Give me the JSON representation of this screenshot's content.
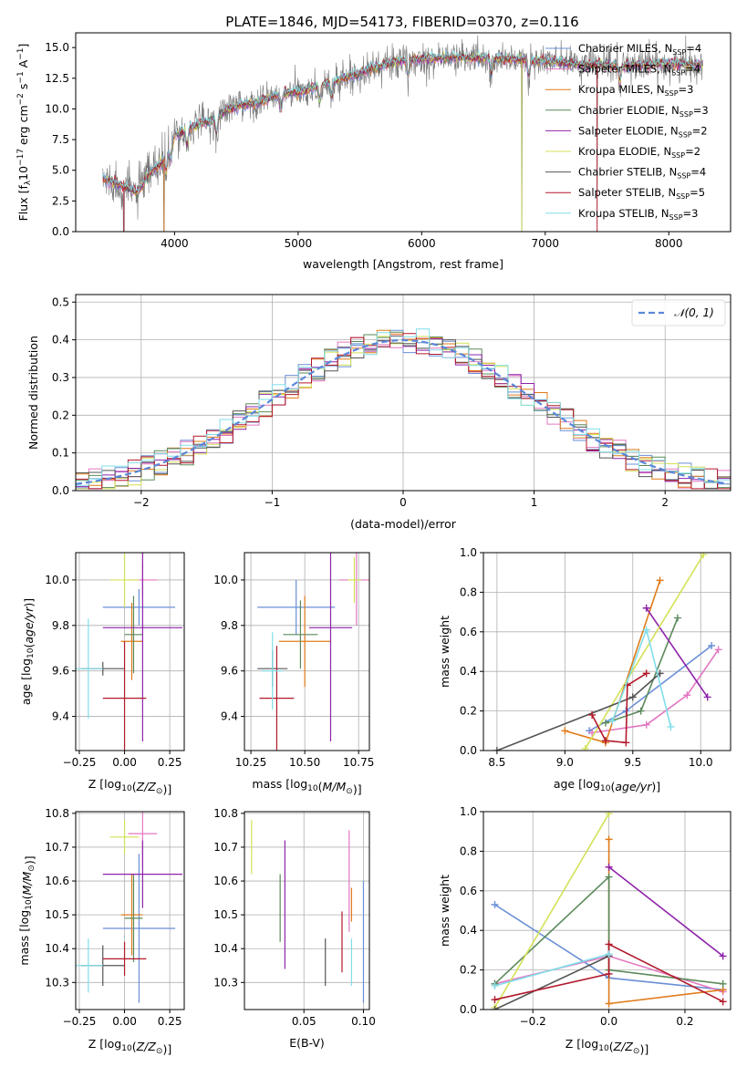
{
  "figure_title": "PLATE=1846, MJD=54173, FIBERID=0370, z=0.116",
  "series": [
    {
      "name": "Chabrier MILES, N$_{SSP}$=4",
      "label_base": "Chabrier MILES, N",
      "label_sub": "SSP",
      "label_tail": "=4",
      "color": "#6b8fd6"
    },
    {
      "name": "Salpeter MILES, N$_{SSP}$=4",
      "label_base": "Salpeter MILES, N",
      "label_sub": "SSP",
      "label_tail": "=4",
      "color": "#e377c2"
    },
    {
      "name": "Kroupa MILES, N$_{SSP}$=3",
      "label_base": "Kroupa MILES, N",
      "label_sub": "SSP",
      "label_tail": "=3",
      "color": "#e07b1a"
    },
    {
      "name": "Chabrier ELODIE, N$_{SSP}$=3",
      "label_base": "Chabrier ELODIE, N",
      "label_sub": "SSP",
      "label_tail": "=3",
      "color": "#5b8a5b"
    },
    {
      "name": "Salpeter ELODIE, N$_{SSP}$=2",
      "label_base": "Salpeter ELODIE, N",
      "label_sub": "SSP",
      "label_tail": "=2",
      "color": "#8e24aa"
    },
    {
      "name": "Kroupa ELODIE, N$_{SSP}$=2",
      "label_base": "Kroupa ELODIE, N",
      "label_sub": "SSP",
      "label_tail": "=2",
      "color": "#d4e157"
    },
    {
      "name": "Chabrier STELIB, N$_{SSP}$=4",
      "label_base": "Chabrier STELIB, N",
      "label_sub": "SSP",
      "label_tail": "=4",
      "color": "#555555"
    },
    {
      "name": "Salpeter STELIB, N$_{SSP}$=5",
      "label_base": "Salpeter STELIB, N",
      "label_sub": "SSP",
      "label_tail": "=5",
      "color": "#b2182b"
    },
    {
      "name": "Kroupa STELIB, N$_{SSP}$=3",
      "label_base": "Kroupa STELIB, N",
      "label_sub": "SSP",
      "label_tail": "=3",
      "color": "#80deea"
    }
  ],
  "chart_data": [
    {
      "id": "spectrum",
      "type": "line",
      "xlabel": "wavelength [Angstrom, rest frame]",
      "ylabel_base": "Flux [f",
      "ylabel_rest": "10",
      "ylabel_exp": "−17",
      "ylabel_tail": " erg cm",
      "ylabel_exp2": "−2",
      "ylabel_tail2": " s",
      "ylabel_exp3": "−1",
      "ylabel_tail3": " A",
      "ylabel_exp4": "−1",
      "ylabel_end": "]",
      "xlim": [
        3200,
        8500
      ],
      "ylim": [
        0,
        16.2
      ],
      "xticks": [
        4000,
        5000,
        6000,
        7000,
        8000
      ],
      "yticks": [
        0.0,
        2.5,
        5.0,
        7.5,
        10.0,
        12.5,
        15.0
      ],
      "ytick_labels": [
        "0.0",
        "2.5",
        "5.0",
        "7.5",
        "10.0",
        "12.5",
        "15.0"
      ],
      "data_range": [
        3420,
        8280
      ],
      "anchors": [
        [
          3420,
          4.3
        ],
        [
          3600,
          3.6
        ],
        [
          3700,
          3.2
        ],
        [
          3800,
          4.8
        ],
        [
          3900,
          5.6
        ],
        [
          4000,
          7.8
        ],
        [
          4100,
          8.3
        ],
        [
          4200,
          8.8
        ],
        [
          4300,
          9.0
        ],
        [
          4400,
          9.8
        ],
        [
          4500,
          10.2
        ],
        [
          4700,
          10.6
        ],
        [
          4860,
          11.2
        ],
        [
          5000,
          11.3
        ],
        [
          5200,
          12.0
        ],
        [
          5400,
          12.6
        ],
        [
          5600,
          13.3
        ],
        [
          5800,
          13.9
        ],
        [
          6000,
          14.1
        ],
        [
          6300,
          14.2
        ],
        [
          6600,
          14.1
        ],
        [
          6800,
          14.0
        ],
        [
          7000,
          13.9
        ],
        [
          7300,
          13.6
        ],
        [
          7600,
          13.5
        ],
        [
          8000,
          13.7
        ],
        [
          8280,
          13.6
        ]
      ],
      "dips": [
        3933,
        3968,
        4102,
        4340,
        4861,
        5175,
        5270,
        5890,
        6563,
        6867,
        7605
      ],
      "spikes_to_zero": [
        3590,
        3915,
        6810,
        7420
      ],
      "legend_location": "top-right",
      "grid": false
    },
    {
      "id": "residuals",
      "type": "step-histogram",
      "xlabel": "(data-model)/error",
      "ylabel": "Normed distribution",
      "xlim": [
        -2.5,
        2.5
      ],
      "ylim": [
        0,
        0.52
      ],
      "xticks": [
        -2,
        -1,
        0,
        1,
        2
      ],
      "xtick_labels": [
        "−2",
        "−1",
        "0",
        "1",
        "2"
      ],
      "yticks": [
        0.0,
        0.1,
        0.2,
        0.3,
        0.4,
        0.5
      ],
      "ytick_labels": [
        "0.0",
        "0.1",
        "0.2",
        "0.3",
        "0.4",
        "0.5"
      ],
      "bin_width": 0.1,
      "reference_curve": {
        "name": "N(0,1)",
        "label": "𝒩(0, 1)",
        "color": "#5b87d9",
        "style": "dashed"
      },
      "legend_location": "top-right",
      "grid": true
    },
    {
      "id": "age_vs_Z",
      "type": "errorbar",
      "xlabel": "Z [log10(Z/Z⊙)]",
      "ylabel": "age  [log10(age/yr)]",
      "xlim": [
        -0.27,
        0.33
      ],
      "ylim": [
        9.25,
        10.12
      ],
      "xticks": [
        -0.25,
        0.0,
        0.25
      ],
      "xtick_labels": [
        "−0.25",
        "0.00",
        "0.25"
      ],
      "yticks": [
        9.4,
        9.6,
        9.8,
        10.0
      ],
      "ytick_labels": [
        "9.4",
        "9.6",
        "9.8",
        "10.0"
      ],
      "points": [
        {
          "s": 0,
          "x": 0.08,
          "xe": 0.2,
          "y": 9.88,
          "ye": 0.08
        },
        {
          "s": 1,
          "x": 0.1,
          "xe": 0.08,
          "y": 10.0,
          "ye": 0.08
        },
        {
          "s": 2,
          "x": 0.04,
          "xe": 0.06,
          "y": 9.73,
          "ye": 0.17
        },
        {
          "s": 3,
          "x": 0.05,
          "xe": 0.05,
          "y": 9.76,
          "ye": 0.17
        },
        {
          "s": 4,
          "x": 0.1,
          "xe": 0.22,
          "y": 9.79,
          "ye": 0.5
        },
        {
          "s": 5,
          "x": 0.0,
          "xe": 0.08,
          "y": 10.0,
          "ye": 0.12
        },
        {
          "s": 6,
          "x": -0.12,
          "xe": 0.12,
          "y": 9.61,
          "ye": 0.03
        },
        {
          "s": 7,
          "x": 0.0,
          "xe": 0.12,
          "y": 9.48,
          "ye": 0.25
        },
        {
          "s": 8,
          "x": -0.2,
          "xe": 0.08,
          "y": 9.61,
          "ye": 0.22
        }
      ]
    },
    {
      "id": "age_vs_mass",
      "type": "errorbar",
      "xlabel": "mass [log10(M/M⊙)]",
      "ylabel": "",
      "xlim": [
        10.22,
        10.8
      ],
      "ylim": [
        9.25,
        10.12
      ],
      "xticks": [
        10.25,
        10.5,
        10.75
      ],
      "xtick_labels": [
        "10.25",
        "10.50",
        "10.75"
      ],
      "yticks": [
        9.4,
        9.6,
        9.8,
        10.0
      ],
      "ytick_labels": [
        "9.4",
        "9.6",
        "9.8",
        "10.0"
      ],
      "points": [
        {
          "s": 0,
          "x": 10.46,
          "xe": 0.18,
          "y": 9.88,
          "ye": 0.12
        },
        {
          "s": 1,
          "x": 10.74,
          "xe": 0.08,
          "y": 10.0,
          "ye": 0.2
        },
        {
          "s": 2,
          "x": 10.5,
          "xe": 0.12,
          "y": 9.73,
          "ye": 0.2
        },
        {
          "s": 3,
          "x": 10.48,
          "xe": 0.08,
          "y": 9.76,
          "ye": 0.15
        },
        {
          "s": 4,
          "x": 10.62,
          "xe": 0.1,
          "y": 9.79,
          "ye": 0.5
        },
        {
          "s": 5,
          "x": 10.73,
          "xe": 0.03,
          "y": 10.0,
          "ye": 0.1
        },
        {
          "s": 6,
          "x": 10.35,
          "xe": 0.07,
          "y": 9.61,
          "ye": 0.08
        },
        {
          "s": 7,
          "x": 10.37,
          "xe": 0.08,
          "y": 9.48,
          "ye": 0.23
        },
        {
          "s": 8,
          "x": 10.35,
          "xe": 0.05,
          "y": 9.6,
          "ye": 0.17
        }
      ]
    },
    {
      "id": "mass_weight_vs_age",
      "type": "line",
      "xlabel": "age  [log10(age/yr)]",
      "ylabel": "mass weight",
      "xlim": [
        8.4,
        10.22
      ],
      "ylim": [
        0,
        1.0
      ],
      "xticks": [
        8.5,
        9.0,
        9.5,
        10.0
      ],
      "xtick_labels": [
        "8.5",
        "9.0",
        "9.5",
        "10.0"
      ],
      "yticks": [
        0.0,
        0.2,
        0.4,
        0.6,
        0.8,
        1.0
      ],
      "ytick_labels": [
        "0.0",
        "0.2",
        "0.4",
        "0.6",
        "0.8",
        "1.0"
      ],
      "lines": [
        {
          "s": 0,
          "x": [
            9.18,
            9.45,
            10.08
          ],
          "y": [
            0.1,
            0.2,
            0.53
          ]
        },
        {
          "s": 1,
          "x": [
            9.2,
            9.6,
            9.9,
            10.13
          ],
          "y": [
            0.09,
            0.13,
            0.28,
            0.51
          ]
        },
        {
          "s": 2,
          "x": [
            9.0,
            9.3,
            9.7
          ],
          "y": [
            0.1,
            0.04,
            0.86
          ]
        },
        {
          "s": 3,
          "x": [
            9.3,
            9.56,
            9.83
          ],
          "y": [
            0.14,
            0.2,
            0.67
          ]
        },
        {
          "s": 4,
          "x": [
            9.6,
            10.05
          ],
          "y": [
            0.72,
            0.27
          ]
        },
        {
          "s": 5,
          "x": [
            9.15,
            10.02
          ],
          "y": [
            0.01,
            0.99
          ]
        },
        {
          "s": 6,
          "x": [
            8.5,
            9.5,
            9.7
          ],
          "y": [
            0.0,
            0.27,
            0.39
          ]
        },
        {
          "s": 7,
          "x": [
            9.2,
            9.3,
            9.45,
            9.46,
            9.6
          ],
          "y": [
            0.18,
            0.05,
            0.04,
            0.33,
            0.39
          ]
        },
        {
          "s": 8,
          "x": [
            9.35,
            9.6,
            9.78
          ],
          "y": [
            0.15,
            0.61,
            0.12
          ]
        }
      ]
    },
    {
      "id": "mass_vs_Z",
      "type": "errorbar",
      "xlabel": "Z [log10(Z/Z⊙)]",
      "ylabel": "mass [log10(M/M⊙)]",
      "xlim": [
        -0.27,
        0.33
      ],
      "ylim": [
        10.22,
        10.805
      ],
      "xticks": [
        -0.25,
        0.0,
        0.25
      ],
      "xtick_labels": [
        "−0.25",
        "0.00",
        "0.25"
      ],
      "yticks": [
        10.3,
        10.4,
        10.5,
        10.6,
        10.7,
        10.8
      ],
      "ytick_labels": [
        "10.3",
        "10.4",
        "10.5",
        "10.6",
        "10.7",
        "10.8"
      ],
      "points": [
        {
          "s": 0,
          "x": 0.08,
          "xe": 0.2,
          "y": 10.46,
          "ye": 0.22
        },
        {
          "s": 1,
          "x": 0.1,
          "xe": 0.08,
          "y": 10.74,
          "ye": 0.1
        },
        {
          "s": 2,
          "x": 0.04,
          "xe": 0.06,
          "y": 10.5,
          "ye": 0.12
        },
        {
          "s": 3,
          "x": 0.05,
          "xe": 0.05,
          "y": 10.49,
          "ye": 0.13
        },
        {
          "s": 4,
          "x": 0.1,
          "xe": 0.22,
          "y": 10.62,
          "ye": 0.1
        },
        {
          "s": 5,
          "x": 0.0,
          "xe": 0.08,
          "y": 10.73,
          "ye": 0.05
        },
        {
          "s": 6,
          "x": -0.12,
          "xe": 0.12,
          "y": 10.35,
          "ye": 0.06
        },
        {
          "s": 7,
          "x": 0.0,
          "xe": 0.12,
          "y": 10.37,
          "ye": 0.05
        },
        {
          "s": 8,
          "x": -0.2,
          "xe": 0.08,
          "y": 10.35,
          "ye": 0.08
        }
      ]
    },
    {
      "id": "mass_vs_ebv",
      "type": "errorbar",
      "xlabel": "E(B-V)",
      "ylabel": "",
      "xlim": [
        0.0,
        0.105
      ],
      "ylim": [
        10.22,
        10.805
      ],
      "xticks": [
        0.05,
        0.1
      ],
      "xtick_labels": [
        "0.05",
        "0.10"
      ],
      "yticks": [
        10.3,
        10.4,
        10.5,
        10.6,
        10.7,
        10.8
      ],
      "ytick_labels": [
        "10.3",
        "10.4",
        "10.5",
        "10.6",
        "10.7",
        "10.8"
      ],
      "points": [
        {
          "s": 0,
          "x": 0.1,
          "y": 10.42,
          "ye": 0.18
        },
        {
          "s": 1,
          "x": 0.088,
          "y": 10.6,
          "ye": 0.15
        },
        {
          "s": 2,
          "x": 0.09,
          "y": 10.53,
          "ye": 0.05
        },
        {
          "s": 3,
          "x": 0.03,
          "y": 10.52,
          "ye": 0.1
        },
        {
          "s": 4,
          "x": 0.034,
          "y": 10.53,
          "ye": 0.19
        },
        {
          "s": 5,
          "x": 0.006,
          "y": 10.7,
          "ye": 0.08
        },
        {
          "s": 6,
          "x": 0.068,
          "y": 10.36,
          "ye": 0.07
        },
        {
          "s": 7,
          "x": 0.082,
          "y": 10.42,
          "ye": 0.09
        },
        {
          "s": 8,
          "x": 0.09,
          "y": 10.36,
          "ye": 0.07
        }
      ]
    },
    {
      "id": "mass_weight_vs_Z",
      "type": "line",
      "xlabel": "Z [log10(Z/Z⊙)]",
      "ylabel": "mass weight",
      "xlim": [
        -0.33,
        0.32
      ],
      "ylim": [
        0,
        1.0
      ],
      "xticks": [
        -0.2,
        0.0,
        0.2
      ],
      "xtick_labels": [
        "−0.2",
        "0.0",
        "0.2"
      ],
      "yticks": [
        0.0,
        0.2,
        0.4,
        0.6,
        0.8,
        1.0
      ],
      "ytick_labels": [
        "0.0",
        "0.2",
        "0.4",
        "0.6",
        "0.8",
        "1.0"
      ],
      "lines": [
        {
          "s": 0,
          "x": [
            -0.3,
            0.0,
            0.3
          ],
          "y": [
            0.53,
            0.16,
            0.1
          ]
        },
        {
          "s": 1,
          "x": [
            -0.3,
            0.0,
            0.3
          ],
          "y": [
            0.13,
            0.27,
            0.09
          ]
        },
        {
          "s": 2,
          "x": [
            0.0,
            0.0,
            0.3
          ],
          "y": [
            0.86,
            0.03,
            0.1
          ]
        },
        {
          "s": 3,
          "x": [
            -0.3,
            0.0,
            0.0,
            0.3
          ],
          "y": [
            0.13,
            0.67,
            0.2,
            0.13
          ]
        },
        {
          "s": 4,
          "x": [
            0.0,
            0.3
          ],
          "y": [
            0.72,
            0.27
          ]
        },
        {
          "s": 5,
          "x": [
            -0.3,
            0.0
          ],
          "y": [
            0.01,
            0.99
          ]
        },
        {
          "s": 6,
          "x": [
            -0.3,
            0.0
          ],
          "y": [
            0.0,
            0.27
          ]
        },
        {
          "s": 7,
          "x": [
            -0.3,
            0.0,
            0.0,
            0.3
          ],
          "y": [
            0.05,
            0.18,
            0.33,
            0.04
          ]
        },
        {
          "s": 8,
          "x": [
            -0.3,
            0.0
          ],
          "y": [
            0.12,
            0.28
          ]
        }
      ]
    }
  ]
}
